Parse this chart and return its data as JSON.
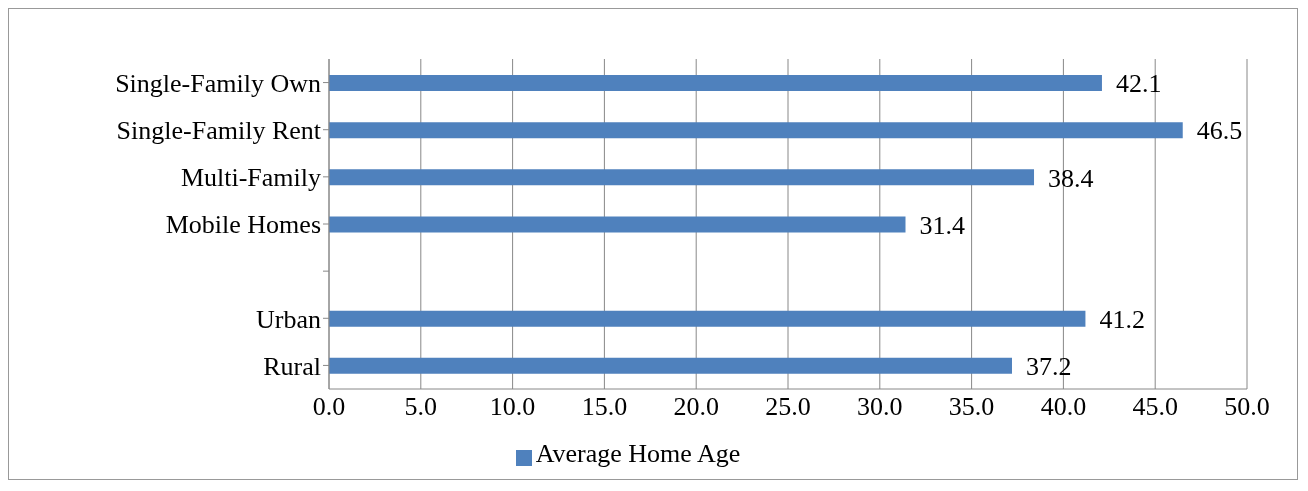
{
  "chart_data": {
    "type": "bar",
    "orientation": "horizontal",
    "categories": [
      "Single-Family Own",
      "Single-Family Rent",
      "Multi-Family",
      "Mobile Homes",
      null,
      "Urban",
      "Rural"
    ],
    "series": [
      {
        "name": "Average Home Age",
        "color": "#4f81bd",
        "values": [
          42.1,
          46.5,
          38.4,
          31.4,
          null,
          41.2,
          37.2
        ]
      }
    ],
    "xlim": [
      0,
      50
    ],
    "xticks": [
      {
        "value": 0,
        "label": "0.0"
      },
      {
        "value": 5,
        "label": "5.0"
      },
      {
        "value": 10,
        "label": "10.0"
      },
      {
        "value": 15,
        "label": "15.0"
      },
      {
        "value": 20,
        "label": "20.0"
      },
      {
        "value": 25,
        "label": "25.0"
      },
      {
        "value": 30,
        "label": "30.0"
      },
      {
        "value": 35,
        "label": "35.0"
      },
      {
        "value": 40,
        "label": "40.0"
      },
      {
        "value": 45,
        "label": "45.0"
      },
      {
        "value": 50,
        "label": "50.0"
      }
    ],
    "grid": "x",
    "data_labels": true,
    "legend": "bottom"
  }
}
